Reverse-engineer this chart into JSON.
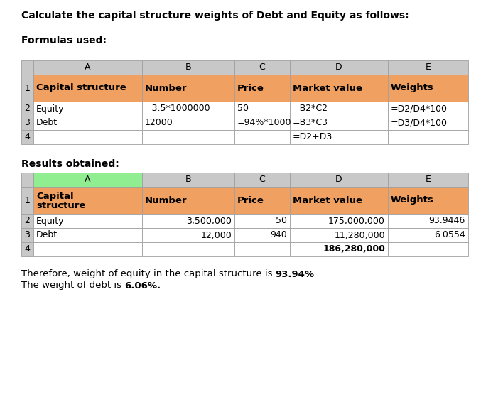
{
  "title_text": "Calculate the capital structure weights of Debt and Equity as follows:",
  "formulas_label": "Formulas used:",
  "results_label": "Results obtained:",
  "footer_line1_normal": "Therefore, weight of equity in the capital structure is ",
  "footer_line1_bold": "93.94%",
  "footer_line2_normal": "The weight of debt is ",
  "footer_line2_bold": "6.06%.",
  "formula_table": {
    "col_headers": [
      "A",
      "B",
      "C",
      "D",
      "E"
    ],
    "header_row": [
      "Capital structure",
      "Number",
      "Price",
      "Market value",
      "Weights"
    ],
    "row2": [
      "Equity",
      "=3.5*1000000",
      "50",
      "=B2*C2",
      "=D2/D4*100"
    ],
    "row3": [
      "Debt",
      "12000",
      "=94%*1000",
      "=B3*C3",
      "=D3/D4*100"
    ],
    "row4": [
      "",
      "",
      "",
      "=D2+D3",
      ""
    ]
  },
  "result_table": {
    "col_headers": [
      "A",
      "B",
      "C",
      "D",
      "E"
    ],
    "header_row_line1": "Capital",
    "header_row_line2": "structure",
    "header_col2": "Number",
    "header_col3": "Price",
    "header_col4": "Market value",
    "header_col5": "Weights",
    "row2": [
      "Equity",
      "3,500,000",
      "50",
      "175,000,000",
      "93.9446"
    ],
    "row3": [
      "Debt",
      "12,000",
      "940",
      "11,280,000",
      "6.0554"
    ],
    "row4": [
      "",
      "",
      "",
      "186,280,000",
      ""
    ]
  },
  "orange": "#F0A060",
  "gray": "#C8C8C8",
  "green": "#90EE90",
  "white": "#FFFFFF",
  "border": "#A0A0A0",
  "dark_gray": "#808080",
  "background": "#FFFFFF"
}
